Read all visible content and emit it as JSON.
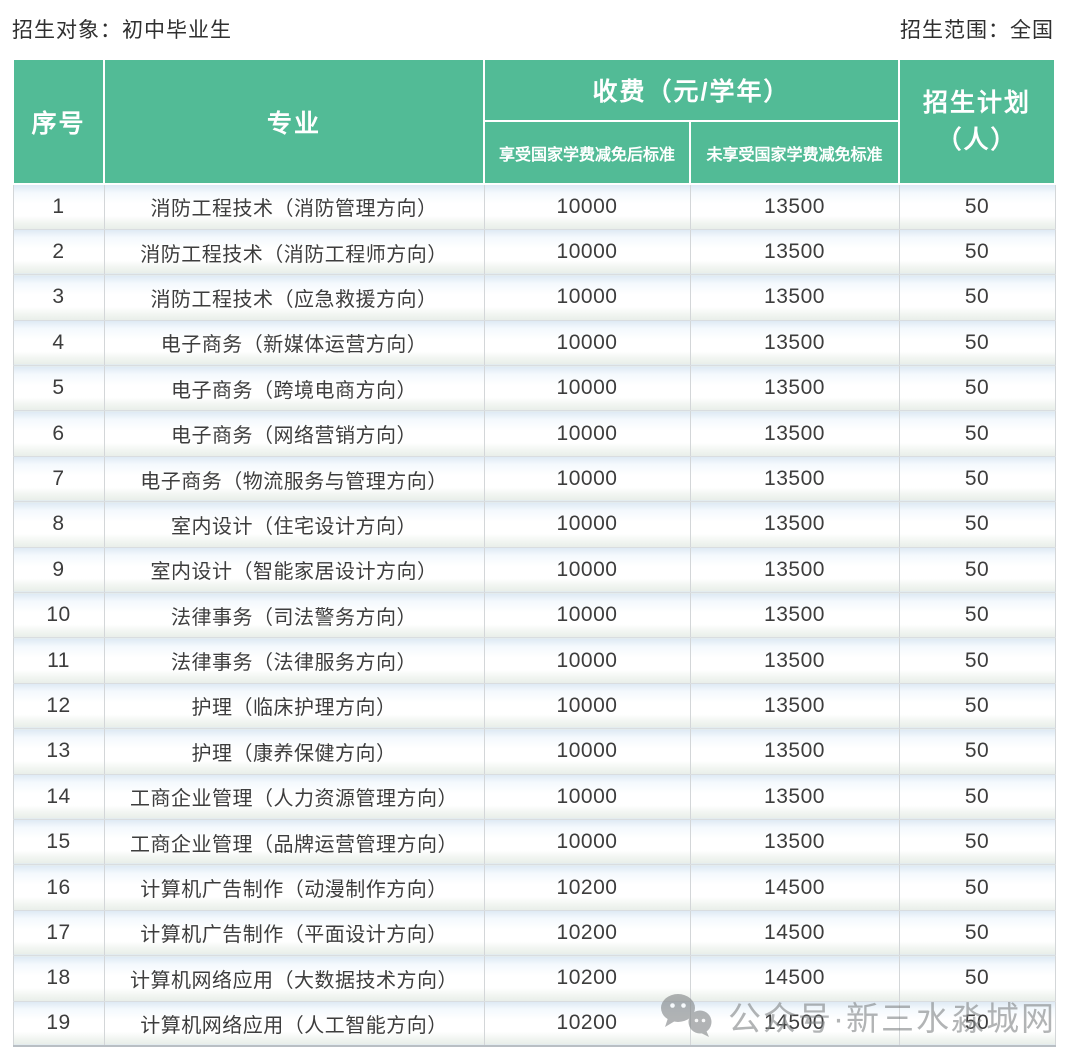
{
  "page": {
    "top_left_label": "招生对象：初中毕业生",
    "top_right_label": "招生范围：全国"
  },
  "colors": {
    "header_green": "#52bb96",
    "header_text": "#ffffff",
    "body_text": "#3d3d3d",
    "row_gradient_top": "#dde9f4",
    "row_gradient_bottom": "#e8eee9",
    "watermark_gray": "#828688"
  },
  "table": {
    "headers": {
      "index": "序号",
      "major": "专业",
      "fee_group": "收费（元/学年）",
      "fee_reduced": "享受国家学费减免后标准",
      "fee_full": "未享受国家学费减免标准",
      "plan_line1": "招生计划",
      "plan_line2": "（人）"
    },
    "rows": [
      {
        "index": "1",
        "major": "消防工程技术（消防管理方向）",
        "fee_reduced": "10000",
        "fee_full": "13500",
        "plan": "50"
      },
      {
        "index": "2",
        "major": "消防工程技术（消防工程师方向）",
        "fee_reduced": "10000",
        "fee_full": "13500",
        "plan": "50"
      },
      {
        "index": "3",
        "major": "消防工程技术（应急救援方向）",
        "fee_reduced": "10000",
        "fee_full": "13500",
        "plan": "50"
      },
      {
        "index": "4",
        "major": "电子商务（新媒体运营方向）",
        "fee_reduced": "10000",
        "fee_full": "13500",
        "plan": "50"
      },
      {
        "index": "5",
        "major": "电子商务（跨境电商方向）",
        "fee_reduced": "10000",
        "fee_full": "13500",
        "plan": "50"
      },
      {
        "index": "6",
        "major": "电子商务（网络营销方向）",
        "fee_reduced": "10000",
        "fee_full": "13500",
        "plan": "50"
      },
      {
        "index": "7",
        "major": "电子商务（物流服务与管理方向）",
        "fee_reduced": "10000",
        "fee_full": "13500",
        "plan": "50"
      },
      {
        "index": "8",
        "major": "室内设计（住宅设计方向）",
        "fee_reduced": "10000",
        "fee_full": "13500",
        "plan": "50"
      },
      {
        "index": "9",
        "major": "室内设计（智能家居设计方向）",
        "fee_reduced": "10000",
        "fee_full": "13500",
        "plan": "50"
      },
      {
        "index": "10",
        "major": "法律事务（司法警务方向）",
        "fee_reduced": "10000",
        "fee_full": "13500",
        "plan": "50"
      },
      {
        "index": "11",
        "major": "法律事务（法律服务方向）",
        "fee_reduced": "10000",
        "fee_full": "13500",
        "plan": "50"
      },
      {
        "index": "12",
        "major": "护理（临床护理方向）",
        "fee_reduced": "10000",
        "fee_full": "13500",
        "plan": "50"
      },
      {
        "index": "13",
        "major": "护理（康养保健方向）",
        "fee_reduced": "10000",
        "fee_full": "13500",
        "plan": "50"
      },
      {
        "index": "14",
        "major": "工商企业管理（人力资源管理方向）",
        "fee_reduced": "10000",
        "fee_full": "13500",
        "plan": "50"
      },
      {
        "index": "15",
        "major": "工商企业管理（品牌运营管理方向）",
        "fee_reduced": "10000",
        "fee_full": "13500",
        "plan": "50"
      },
      {
        "index": "16",
        "major": "计算机广告制作（动漫制作方向）",
        "fee_reduced": "10200",
        "fee_full": "14500",
        "plan": "50"
      },
      {
        "index": "17",
        "major": "计算机广告制作（平面设计方向）",
        "fee_reduced": "10200",
        "fee_full": "14500",
        "plan": "50"
      },
      {
        "index": "18",
        "major": "计算机网络应用（大数据技术方向）",
        "fee_reduced": "10200",
        "fee_full": "14500",
        "plan": "50"
      },
      {
        "index": "19",
        "major": "计算机网络应用（人工智能方向）",
        "fee_reduced": "10200",
        "fee_full": "14500",
        "plan": "50"
      }
    ]
  },
  "watermark": {
    "icon": "wechat-icon",
    "text": "公众号·新三水淼城网"
  }
}
